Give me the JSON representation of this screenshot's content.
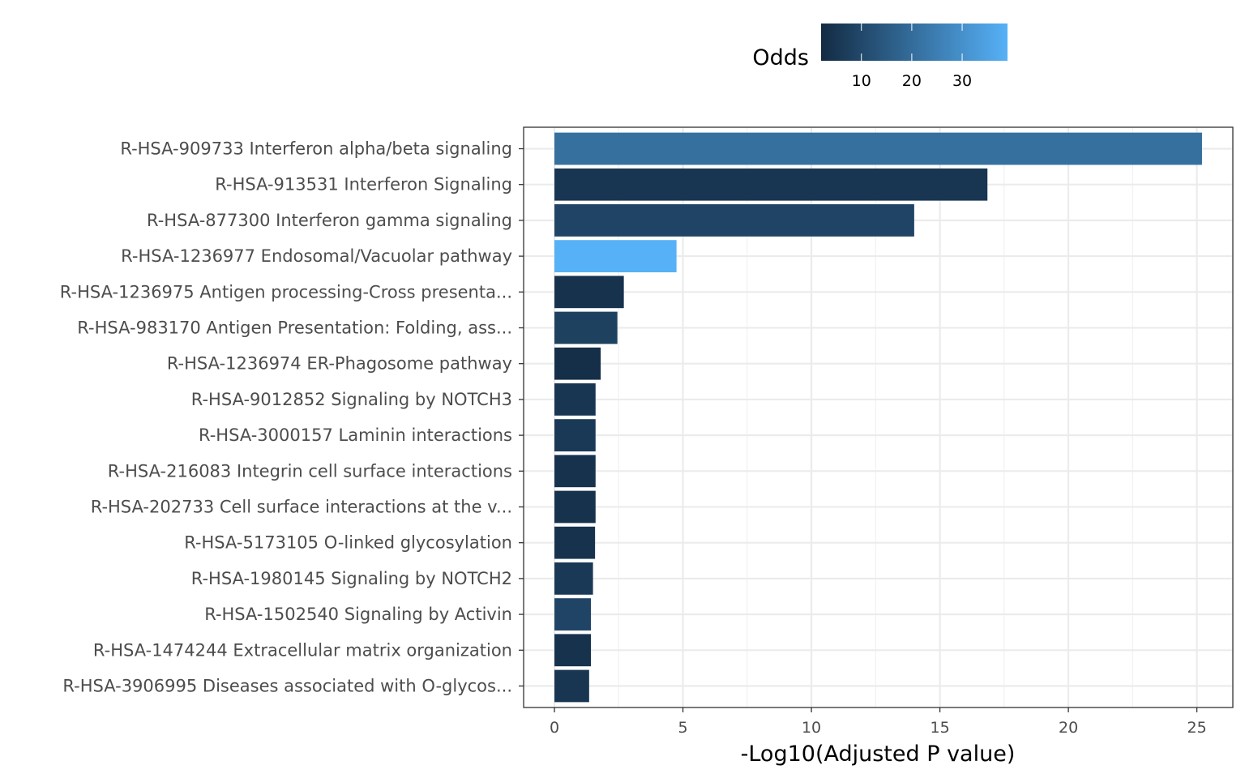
{
  "chart_data": {
    "type": "bar",
    "orientation": "horizontal",
    "xlabel": "-Log10(Adjusted P value)",
    "ylabel": "",
    "xlim": [
      -1.2,
      26.4
    ],
    "xticks": [
      0,
      5,
      10,
      15,
      20,
      25
    ],
    "grid": true,
    "legend": {
      "title": "Odds",
      "position": "top",
      "type": "colorbar",
      "range": [
        2,
        39
      ],
      "ticks": [
        10,
        20,
        30
      ],
      "low_color": "#132B43",
      "high_color": "#56B1F7"
    },
    "categories": [
      "R-HSA-909733 Interferon alpha/beta signaling",
      "R-HSA-913531 Interferon Signaling",
      "R-HSA-877300 Interferon gamma signaling",
      "R-HSA-1236977 Endosomal/Vacuolar pathway",
      "R-HSA-1236975 Antigen processing-Cross presenta...",
      "R-HSA-983170 Antigen Presentation: Folding, ass...",
      "R-HSA-1236974 ER-Phagosome pathway",
      "R-HSA-9012852 Signaling by NOTCH3",
      "R-HSA-3000157 Laminin interactions",
      "R-HSA-216083 Integrin cell surface interactions",
      "R-HSA-202733 Cell surface interactions at the v...",
      "R-HSA-5173105 O-linked glycosylation",
      "R-HSA-1980145 Signaling by NOTCH2",
      "R-HSA-1502540 Signaling by Activin",
      "R-HSA-1474244 Extracellular matrix organization",
      "R-HSA-3906995 Diseases associated with O-glycos..."
    ],
    "values": [
      25.2,
      16.85,
      14.0,
      4.75,
      2.7,
      2.45,
      1.8,
      1.6,
      1.6,
      1.6,
      1.6,
      1.58,
      1.5,
      1.42,
      1.42,
      1.35
    ],
    "odds": [
      21,
      5,
      9,
      39,
      4,
      8,
      3,
      5,
      6,
      4,
      4,
      4,
      6,
      9,
      4,
      5
    ]
  }
}
